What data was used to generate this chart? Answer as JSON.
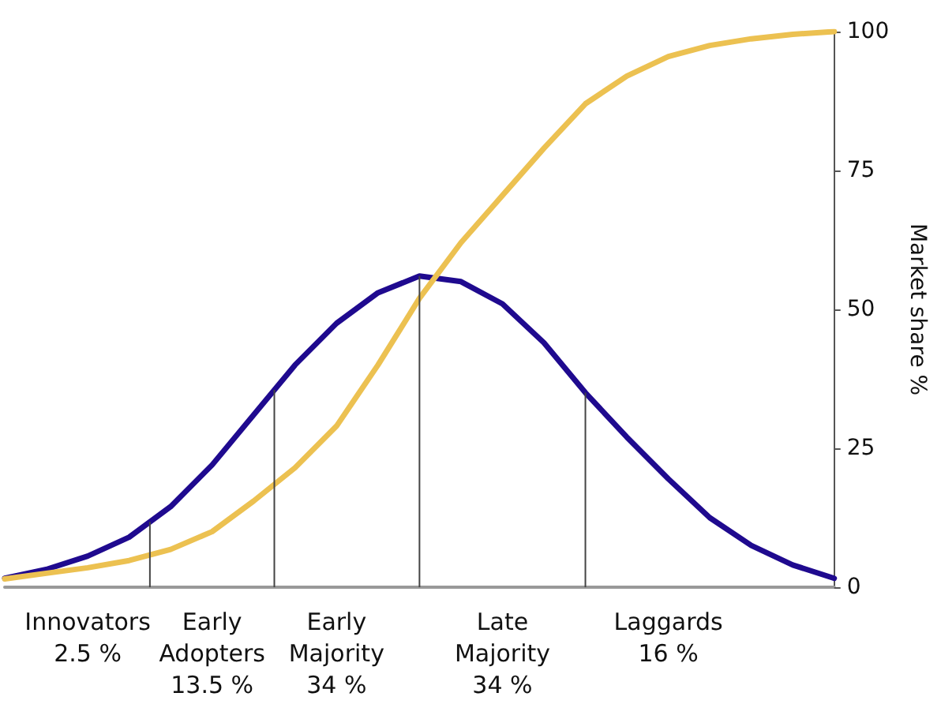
{
  "chart_data": {
    "type": "line",
    "ylabel": "Market share %",
    "ylim": [
      0,
      100
    ],
    "yticks": [
      0,
      25,
      50,
      75,
      100
    ],
    "marker": "none",
    "line_style": "solid",
    "categories": [
      null,
      null,
      "Innovators\n2.5 %",
      null,
      null,
      "Early\nAdopters\n13.5 %",
      null,
      null,
      "Early\nMajority\n34 %",
      null,
      null,
      null,
      "Late\nMajority\n34 %",
      null,
      null,
      null,
      "Laggards\n16 %",
      null,
      null,
      null,
      null
    ],
    "series": [
      {
        "color": "#1f0a8f",
        "values": [
          1.6,
          3.2,
          5.6,
          9,
          14.5,
          22,
          31,
          40,
          47.5,
          53,
          56,
          55,
          51,
          44,
          35,
          27,
          19.5,
          12.5,
          7.5,
          4,
          1.6
        ]
      },
      {
        "color": "#ecc151",
        "values": [
          1.5,
          2.5,
          3.5,
          4.8,
          6.8,
          10,
          15.5,
          21.5,
          29,
          40,
          52,
          62,
          70.5,
          79,
          87,
          92,
          95.5,
          97.5,
          98.7,
          99.5,
          100
        ]
      }
    ]
  }
}
